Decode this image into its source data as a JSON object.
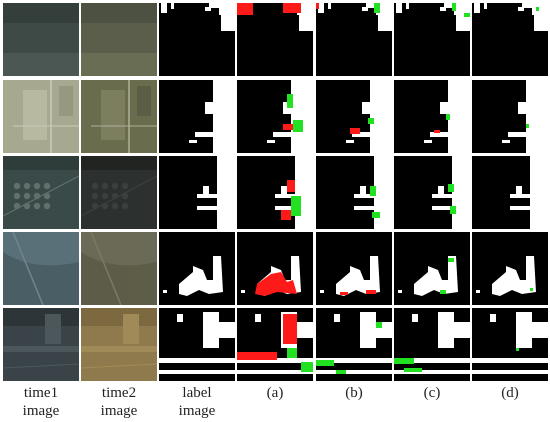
{
  "figure": {
    "columns": [
      {
        "key": "time1",
        "caption": [
          "time1",
          "image"
        ]
      },
      {
        "key": "time2",
        "caption": [
          "time2",
          "image"
        ]
      },
      {
        "key": "label",
        "caption": [
          "label",
          "image"
        ]
      },
      {
        "key": "a",
        "caption": [
          "(a)"
        ]
      },
      {
        "key": "b",
        "caption": [
          "(b)"
        ]
      },
      {
        "key": "c",
        "caption": [
          "(c)"
        ]
      },
      {
        "key": "d",
        "caption": [
          "(d)"
        ]
      }
    ],
    "row_count": 5,
    "legend_colors": {
      "change": "#ffffff",
      "no_change": "#000000",
      "false_positive": "#ff1a1a",
      "false_negative": "#22e022"
    }
  }
}
